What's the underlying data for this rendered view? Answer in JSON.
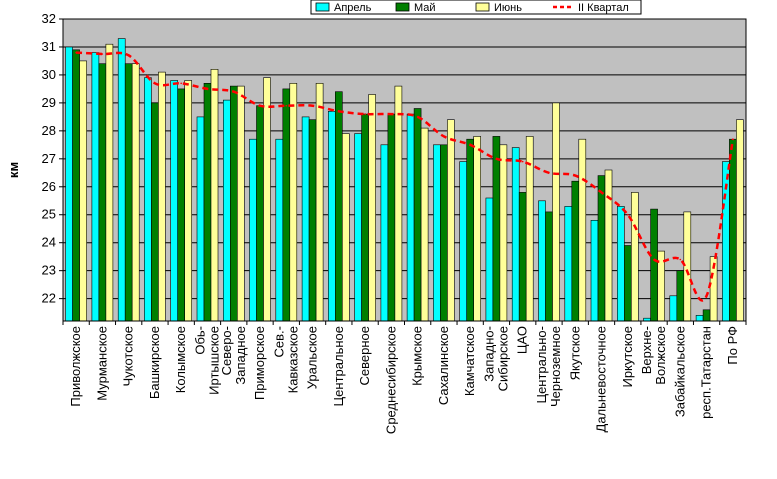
{
  "chart_data": {
    "type": "bar",
    "title": "",
    "xlabel": "",
    "ylabel": "км",
    "ylim": [
      21.2,
      32
    ],
    "yticks": [
      22,
      23,
      24,
      25,
      26,
      27,
      28,
      29,
      30,
      31,
      32
    ],
    "grid": true,
    "legend_position": "top-right",
    "categories": [
      [
        "Приволжское"
      ],
      [
        "Мурманское"
      ],
      [
        "Чукотское"
      ],
      [
        "Башкирское"
      ],
      [
        "Колымское"
      ],
      [
        "Обь-",
        "Иртышское"
      ],
      [
        "Северо-",
        "Западное"
      ],
      [
        "Приморское"
      ],
      [
        "Сев.-",
        "Кавказское"
      ],
      [
        "Уральское"
      ],
      [
        "Центральное"
      ],
      [
        "Северное"
      ],
      [
        "Среднесибирское"
      ],
      [
        "Крымское"
      ],
      [
        "Сахалинское"
      ],
      [
        "Камчатское"
      ],
      [
        "Западно-",
        "Сибирское"
      ],
      [
        "ЦАО"
      ],
      [
        "Центрально-",
        "Черноземное"
      ],
      [
        "Якутское"
      ],
      [
        "Дальневосточное"
      ],
      [
        "Иркутское"
      ],
      [
        "Верхне-",
        "Волжское"
      ],
      [
        "Забайкальское"
      ],
      [
        "респ.Татарстан"
      ],
      [
        "По РФ"
      ]
    ],
    "series": [
      {
        "name": "Апрель",
        "kind": "bar",
        "color": "#00FFFF",
        "values": [
          31.0,
          30.8,
          31.3,
          29.9,
          29.8,
          28.5,
          29.1,
          27.7,
          27.7,
          28.5,
          28.7,
          27.9,
          27.5,
          28.6,
          27.5,
          26.9,
          25.6,
          27.4,
          25.5,
          25.3,
          24.8,
          25.3,
          21.3,
          22.1,
          21.4,
          26.9
        ]
      },
      {
        "name": "Май",
        "kind": "bar",
        "color": "#007F00",
        "values": [
          30.9,
          30.4,
          30.4,
          29.0,
          29.5,
          29.7,
          29.6,
          28.9,
          29.5,
          28.4,
          29.4,
          28.6,
          28.6,
          28.8,
          27.5,
          27.7,
          27.8,
          25.8,
          25.1,
          26.2,
          26.4,
          23.9,
          25.2,
          23.0,
          21.6,
          27.7
        ]
      },
      {
        "name": "Июнь",
        "kind": "bar",
        "color": "#FFFF99",
        "values": [
          30.5,
          31.1,
          30.4,
          30.1,
          29.8,
          30.2,
          29.6,
          29.9,
          29.7,
          29.7,
          27.9,
          29.3,
          29.6,
          28.1,
          28.4,
          27.8,
          27.5,
          27.8,
          29.0,
          27.7,
          26.6,
          25.8,
          23.7,
          25.1,
          23.5,
          28.4
        ]
      },
      {
        "name": "II Квартал",
        "kind": "line",
        "color": "#FF0000",
        "values": [
          30.8,
          30.75,
          30.7,
          29.7,
          29.7,
          29.5,
          29.4,
          28.9,
          28.9,
          28.9,
          28.7,
          28.6,
          28.6,
          28.5,
          27.8,
          27.5,
          27.0,
          26.9,
          26.5,
          26.4,
          25.8,
          25.0,
          23.4,
          23.4,
          22.1,
          27.7
        ]
      }
    ]
  }
}
